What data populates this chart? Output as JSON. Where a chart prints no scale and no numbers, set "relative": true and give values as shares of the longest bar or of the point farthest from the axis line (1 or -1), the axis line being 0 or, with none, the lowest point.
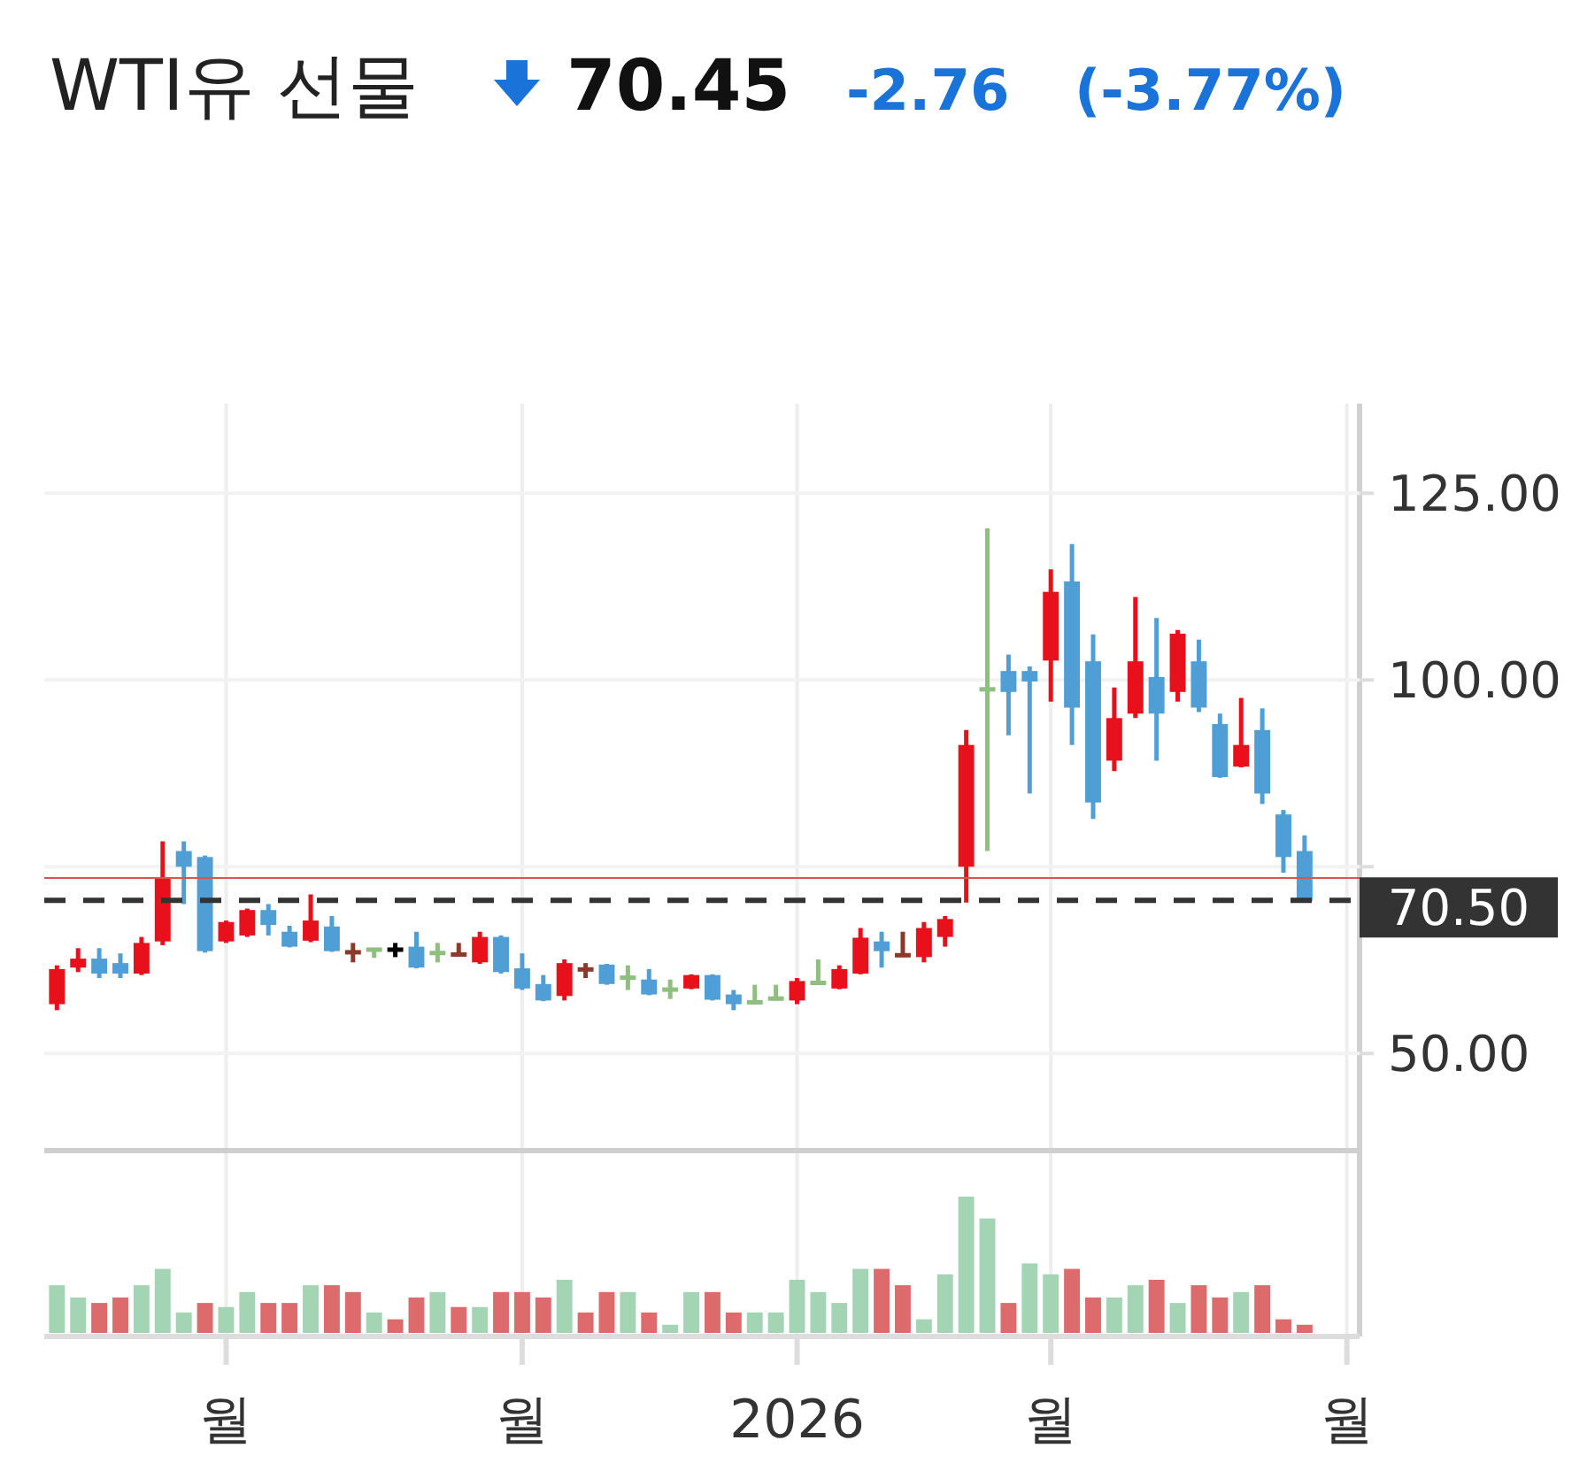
{
  "chart_data": [
    {
      "type": "candlestick",
      "title": "WTI유 선물",
      "annotations": [
        "70.45",
        "-2.76",
        "(-3.77%)"
      ],
      "categories": [
        null,
        null,
        null,
        null,
        null,
        null,
        null,
        null,
        "월",
        null,
        null,
        null,
        null,
        null,
        null,
        null,
        null,
        null,
        null,
        null,
        null,
        null,
        "월",
        null,
        null,
        null,
        null,
        null,
        null,
        null,
        null,
        null,
        null,
        null,
        null,
        "2026",
        null,
        null,
        null,
        null,
        null,
        null,
        null,
        null,
        null,
        null,
        null,
        "월",
        null,
        null,
        null,
        null,
        null,
        null,
        null,
        null,
        null,
        null,
        null,
        null,
        null,
        "월"
      ],
      "ohlc": [
        [
          56.6,
          61.8,
          55.8,
          61.3
        ],
        [
          61.5,
          64.1,
          60.9,
          62.7
        ],
        [
          62.7,
          64.1,
          60.1,
          60.7
        ],
        [
          62.1,
          63.4,
          60.1,
          60.7
        ],
        [
          60.7,
          65.6,
          60.5,
          64.8
        ],
        [
          65.0,
          78.4,
          64.5,
          73.5
        ],
        [
          77.1,
          78.4,
          70.0,
          75.0
        ],
        [
          76.3,
          76.5,
          63.5,
          63.7
        ],
        [
          65.0,
          67.8,
          64.8,
          67.6
        ],
        [
          65.8,
          69.4,
          65.6,
          69.2
        ],
        [
          69.2,
          70.0,
          65.8,
          67.2
        ],
        [
          66.3,
          67.1,
          64.2,
          64.3
        ],
        [
          65.1,
          71.3,
          64.9,
          67.8
        ],
        [
          67.0,
          68.4,
          63.6,
          63.7
        ],
        [
          63.5,
          64.8,
          62.2,
          63.6
        ],
        [
          63.9,
          64.0,
          62.8,
          63.9
        ],
        [
          63.9,
          64.8,
          62.9,
          63.9
        ],
        [
          64.3,
          66.3,
          61.4,
          61.5
        ],
        [
          63.5,
          64.8,
          62.2,
          63.4
        ],
        [
          63.3,
          64.8,
          63.1,
          63.2
        ],
        [
          62.2,
          66.3,
          62.0,
          65.6
        ],
        [
          65.6,
          65.8,
          60.7,
          60.9
        ],
        [
          61.4,
          63.4,
          58.5,
          58.7
        ],
        [
          59.3,
          60.5,
          57.0,
          57.1
        ],
        [
          57.7,
          62.6,
          57.1,
          62.1
        ],
        [
          61.2,
          62.1,
          60.1,
          61.3
        ],
        [
          61.9,
          62.0,
          59.2,
          59.3
        ],
        [
          60.1,
          61.8,
          58.5,
          60.2
        ],
        [
          59.9,
          61.3,
          57.8,
          57.9
        ],
        [
          58.5,
          59.9,
          57.3,
          58.6
        ],
        [
          58.7,
          60.6,
          58.6,
          60.5
        ],
        [
          60.5,
          60.6,
          57.1,
          57.2
        ],
        [
          57.9,
          58.5,
          55.8,
          56.6
        ],
        [
          56.8,
          59.2,
          56.6,
          56.9
        ],
        [
          57.3,
          59.2,
          57.1,
          57.4
        ],
        [
          57.1,
          60.1,
          56.6,
          59.7
        ],
        [
          59.4,
          62.6,
          59.3,
          59.5
        ],
        [
          58.7,
          61.8,
          58.6,
          61.3
        ],
        [
          60.7,
          66.8,
          60.6,
          65.5
        ],
        [
          65.0,
          66.3,
          61.5,
          63.7
        ],
        [
          63.1,
          66.3,
          62.9,
          63.2
        ],
        [
          62.9,
          67.6,
          62.2,
          66.8
        ],
        [
          65.6,
          68.4,
          64.3,
          68.0
        ],
        [
          75.0,
          93.3,
          70.2,
          91.3
        ],
        [
          98.6,
          120.3,
          77.1,
          98.9
        ],
        [
          101.2,
          103.4,
          92.6,
          98.4
        ],
        [
          101.2,
          101.8,
          84.8,
          99.8
        ],
        [
          102.6,
          114.8,
          97.1,
          111.8
        ],
        [
          113.2,
          118.2,
          91.3,
          96.3
        ],
        [
          102.5,
          106.1,
          81.4,
          83.6
        ],
        [
          89.2,
          99.0,
          87.8,
          94.9
        ],
        [
          95.5,
          111.1,
          94.9,
          102.5
        ],
        [
          100.4,
          108.3,
          89.2,
          95.5
        ],
        [
          98.4,
          106.7,
          97.1,
          106.2
        ],
        [
          102.5,
          105.4,
          95.7,
          96.3
        ],
        [
          94.1,
          95.5,
          86.9,
          87.0
        ],
        [
          88.4,
          97.6,
          88.3,
          91.3
        ],
        [
          93.3,
          96.2,
          83.4,
          84.8
        ],
        [
          82.0,
          82.6,
          74.2,
          76.3
        ],
        [
          77.1,
          79.2,
          70.45,
          70.45
        ],
        null,
        null
      ],
      "colors": [
        "#e8101a",
        "#e8101a",
        "#4f9fd6",
        "#4f9fd6",
        "#e8101a",
        "#e8101a",
        "#4f9fd6",
        "#4f9fd6",
        "#e8101a",
        "#e8101a",
        "#4f9fd6",
        "#4f9fd6",
        "#e8101a",
        "#4f9fd6",
        "#8b3a2a",
        "#8fbf7f",
        "#000000",
        "#4f9fd6",
        "#8fbf7f",
        "#8b3a2a",
        "#e8101a",
        "#4f9fd6",
        "#4f9fd6",
        "#4f9fd6",
        "#e8101a",
        "#8b3a2a",
        "#4f9fd6",
        "#8fbf7f",
        "#4f9fd6",
        "#8fbf7f",
        "#e8101a",
        "#4f9fd6",
        "#4f9fd6",
        "#8fbf7f",
        "#8fbf7f",
        "#e8101a",
        "#8fbf7f",
        "#e8101a",
        "#e8101a",
        "#4f9fd6",
        "#8b3a2a",
        "#e8101a",
        "#e8101a",
        "#e8101a",
        "#8fbf7f",
        "#4f9fd6",
        "#4f9fd6",
        "#e8101a",
        "#4f9fd6",
        "#4f9fd6",
        "#e8101a",
        "#e8101a",
        "#4f9fd6",
        "#e8101a",
        "#4f9fd6",
        "#4f9fd6",
        "#e8101a",
        "#4f9fd6",
        "#4f9fd6",
        "#4f9fd6",
        null,
        null
      ],
      "ylim": [
        37,
        137
      ],
      "yticks": [
        {
          "value": 50,
          "label": "50.00"
        },
        {
          "value": 75,
          "label": null
        },
        {
          "value": 100,
          "label": "100.00"
        },
        {
          "value": 125,
          "label": "125.00"
        }
      ],
      "ref_lines": [
        {
          "axis": "y",
          "value": 70.5,
          "label": "70.50",
          "color": "#333333",
          "line_style": "dashed"
        },
        {
          "axis": "y",
          "value": 73.5,
          "color": "#d9534f",
          "line_style": "solid"
        }
      ],
      "grid": true
    },
    {
      "type": "bar",
      "relative": true,
      "categories": [
        null,
        null,
        null,
        null,
        null,
        null,
        null,
        null,
        null,
        null,
        null,
        null,
        null,
        null,
        null,
        null,
        null,
        null,
        null,
        null,
        null,
        null,
        null,
        null,
        null,
        null,
        null,
        null,
        null,
        null,
        null,
        null,
        null,
        null,
        null,
        null,
        null,
        null,
        null,
        null,
        null,
        null,
        null,
        null,
        null,
        null,
        null,
        null,
        null,
        null,
        null,
        null,
        null,
        null,
        null,
        null,
        null,
        null,
        null,
        null,
        null,
        null
      ],
      "values": [
        0.35,
        0.26,
        0.22,
        0.26,
        0.35,
        0.47,
        0.15,
        0.22,
        0.19,
        0.3,
        0.22,
        0.22,
        0.35,
        0.35,
        0.3,
        0.15,
        0.1,
        0.26,
        0.3,
        0.19,
        0.19,
        0.3,
        0.3,
        0.26,
        0.39,
        0.15,
        0.3,
        0.3,
        0.15,
        0.06,
        0.3,
        0.3,
        0.15,
        0.15,
        0.15,
        0.39,
        0.3,
        0.22,
        0.47,
        0.47,
        0.35,
        0.1,
        0.43,
        1,
        0.84,
        0.22,
        0.51,
        0.43,
        0.47,
        0.26,
        0.26,
        0.35,
        0.39,
        0.22,
        0.35,
        0.26,
        0.3,
        0.35,
        0.1,
        0.06,
        null,
        null
      ],
      "colors": [
        "#a3d4b4",
        "#a3d4b4",
        "#dd6b6b",
        "#dd6b6b",
        "#a3d4b4",
        "#a3d4b4",
        "#a3d4b4",
        "#dd6b6b",
        "#a3d4b4",
        "#a3d4b4",
        "#dd6b6b",
        "#dd6b6b",
        "#a3d4b4",
        "#dd6b6b",
        "#dd6b6b",
        "#a3d4b4",
        "#dd6b6b",
        "#dd6b6b",
        "#a3d4b4",
        "#dd6b6b",
        "#a3d4b4",
        "#dd6b6b",
        "#dd6b6b",
        "#dd6b6b",
        "#a3d4b4",
        "#dd6b6b",
        "#dd6b6b",
        "#a3d4b4",
        "#dd6b6b",
        "#a3d4b4",
        "#a3d4b4",
        "#dd6b6b",
        "#dd6b6b",
        "#a3d4b4",
        "#a3d4b4",
        "#a3d4b4",
        "#a3d4b4",
        "#a3d4b4",
        "#a3d4b4",
        "#dd6b6b",
        "#dd6b6b",
        "#a3d4b4",
        "#a3d4b4",
        "#a3d4b4",
        "#a3d4b4",
        "#dd6b6b",
        "#a3d4b4",
        "#a3d4b4",
        "#dd6b6b",
        "#dd6b6b",
        "#a3d4b4",
        "#a3d4b4",
        "#dd6b6b",
        "#a3d4b4",
        "#dd6b6b",
        "#dd6b6b",
        "#a3d4b4",
        "#dd6b6b",
        "#dd6b6b",
        "#dd6b6b",
        null,
        null
      ]
    }
  ]
}
